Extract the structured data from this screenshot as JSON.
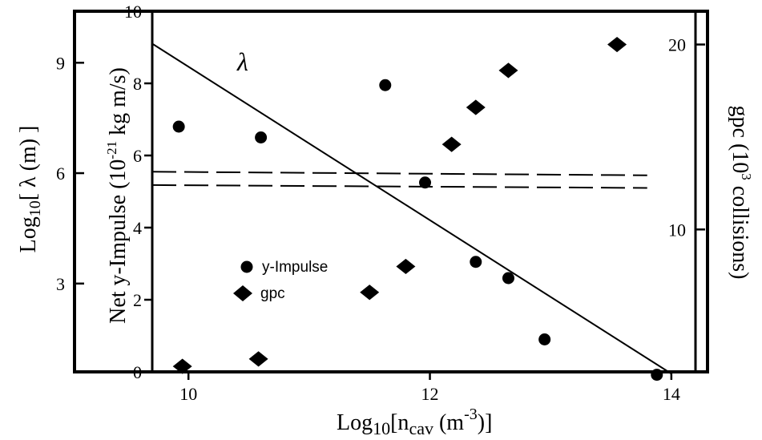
{
  "chart_data": {
    "type": "scatter",
    "xlabel": "Log10[ncav (m-3)]",
    "xlabel_parts": {
      "base": "Log",
      "base_sub": "10",
      "open": "[n",
      "n_sub": "cav",
      "unit": " (m",
      "unit_sup": "-3",
      "close": ")]"
    },
    "x_ticks": [
      "10",
      "12",
      "14"
    ],
    "xlim": [
      9.7,
      14.2
    ],
    "axes": {
      "primary_y": {
        "label_parts": {
          "a": "Net y-Impulse (10",
          "sup": "-21",
          "b": " kg m/s)"
        },
        "ylim": [
          0,
          10
        ],
        "ticks": [
          "0",
          "2",
          "4",
          "6",
          "8",
          "10"
        ]
      },
      "lambda_y": {
        "label_parts": {
          "a": "Log",
          "sub": "10",
          "b": "[ λ (m) ]"
        },
        "ticks": [
          "3",
          "6",
          "9"
        ],
        "ylim": [
          0.6,
          10.4
        ]
      },
      "gpc_y": {
        "label_parts": {
          "a": "gpc (10",
          "sup": "3",
          "b": " collisions)"
        },
        "ticks": [
          "10",
          "20"
        ],
        "ylim": [
          2.3,
          21.8
        ]
      }
    },
    "series": [
      {
        "name": "y-Impulse",
        "marker": "circle",
        "axis": "primary_y",
        "x": [
          9.92,
          10.6,
          11.63,
          11.96,
          12.38,
          12.65,
          12.95,
          13.88
        ],
        "y": [
          6.8,
          6.5,
          7.95,
          5.25,
          3.05,
          2.6,
          0.9,
          -0.08
        ]
      },
      {
        "name": "gpc",
        "marker": "diamond",
        "axis": "gpc_y",
        "x": [
          9.95,
          10.58,
          11.5,
          11.8,
          12.18,
          12.38,
          12.65,
          13.55
        ],
        "y": [
          2.6,
          3.0,
          6.6,
          8.0,
          14.6,
          16.6,
          18.6,
          20.0
        ]
      }
    ],
    "lambda_line": {
      "label": "λ",
      "axis": "primary_y",
      "x": [
        9.7,
        14.0
      ],
      "y": [
        9.1,
        -0.05
      ]
    },
    "dashed_lines": [
      {
        "axis": "primary_y",
        "x": [
          9.7,
          13.8
        ],
        "y": [
          5.55,
          5.45
        ]
      },
      {
        "axis": "primary_y",
        "x": [
          9.7,
          13.8
        ],
        "y": [
          5.18,
          5.1
        ]
      }
    ],
    "legend": {
      "placement": "lower-left",
      "entries": [
        {
          "label": "y-Impulse",
          "marker": "circle"
        },
        {
          "label": "gpc",
          "marker": "diamond"
        }
      ]
    },
    "grid": false
  }
}
